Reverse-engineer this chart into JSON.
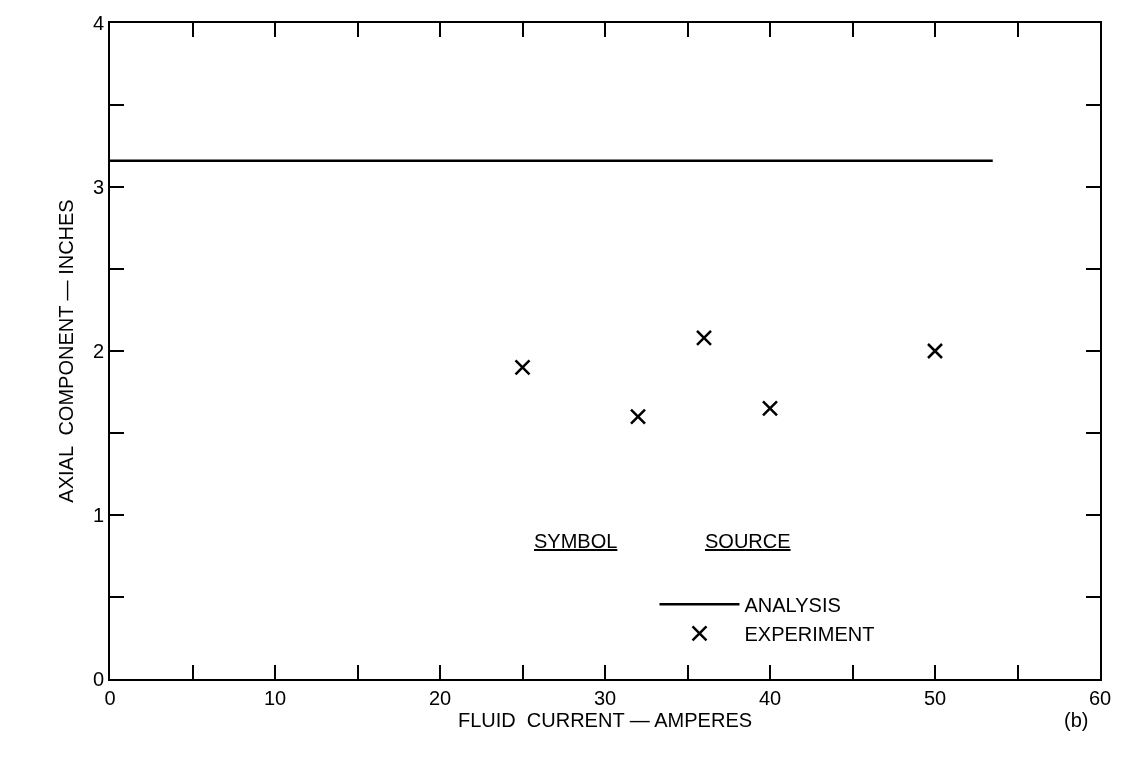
{
  "chart_data": {
    "type": "scatter",
    "xlabel": "FLUID  CURRENT — AMPERES",
    "ylabel": "AXIAL  COMPONENT — INCHES",
    "annotations": [
      "SYMBOL",
      "SOURCE",
      "(b)"
    ],
    "series": [
      {
        "name": "ANALYSIS",
        "type": "line",
        "color": "#000000",
        "x": [
          0,
          53.5
        ],
        "values": [
          3.16,
          3.16
        ],
        "line_style": "solid",
        "marker": "none"
      },
      {
        "name": "EXPERIMENT",
        "color": "#000000",
        "x": [
          25,
          32,
          36,
          40,
          50
        ],
        "values": [
          1.9,
          1.6,
          2.08,
          1.65,
          2.0
        ],
        "marker": "cross"
      }
    ],
    "xlim": [
      0,
      60
    ],
    "xticks": [
      0,
      {
        "value": 5,
        "label": null
      },
      10,
      {
        "value": 15,
        "label": null
      },
      20,
      {
        "value": 25,
        "label": null
      },
      30,
      {
        "value": 35,
        "label": null
      },
      40,
      {
        "value": 45,
        "label": null
      },
      50,
      {
        "value": 55,
        "label": null
      },
      60
    ],
    "ylim": [
      0,
      4
    ],
    "yticks": [
      0,
      {
        "value": 0.5,
        "label": null
      },
      1,
      {
        "value": 1.5,
        "label": null
      },
      2,
      {
        "value": 2.5,
        "label": null
      },
      3,
      {
        "value": 3.5,
        "label": null
      },
      4
    ],
    "grid": false,
    "legend": "bottom"
  }
}
